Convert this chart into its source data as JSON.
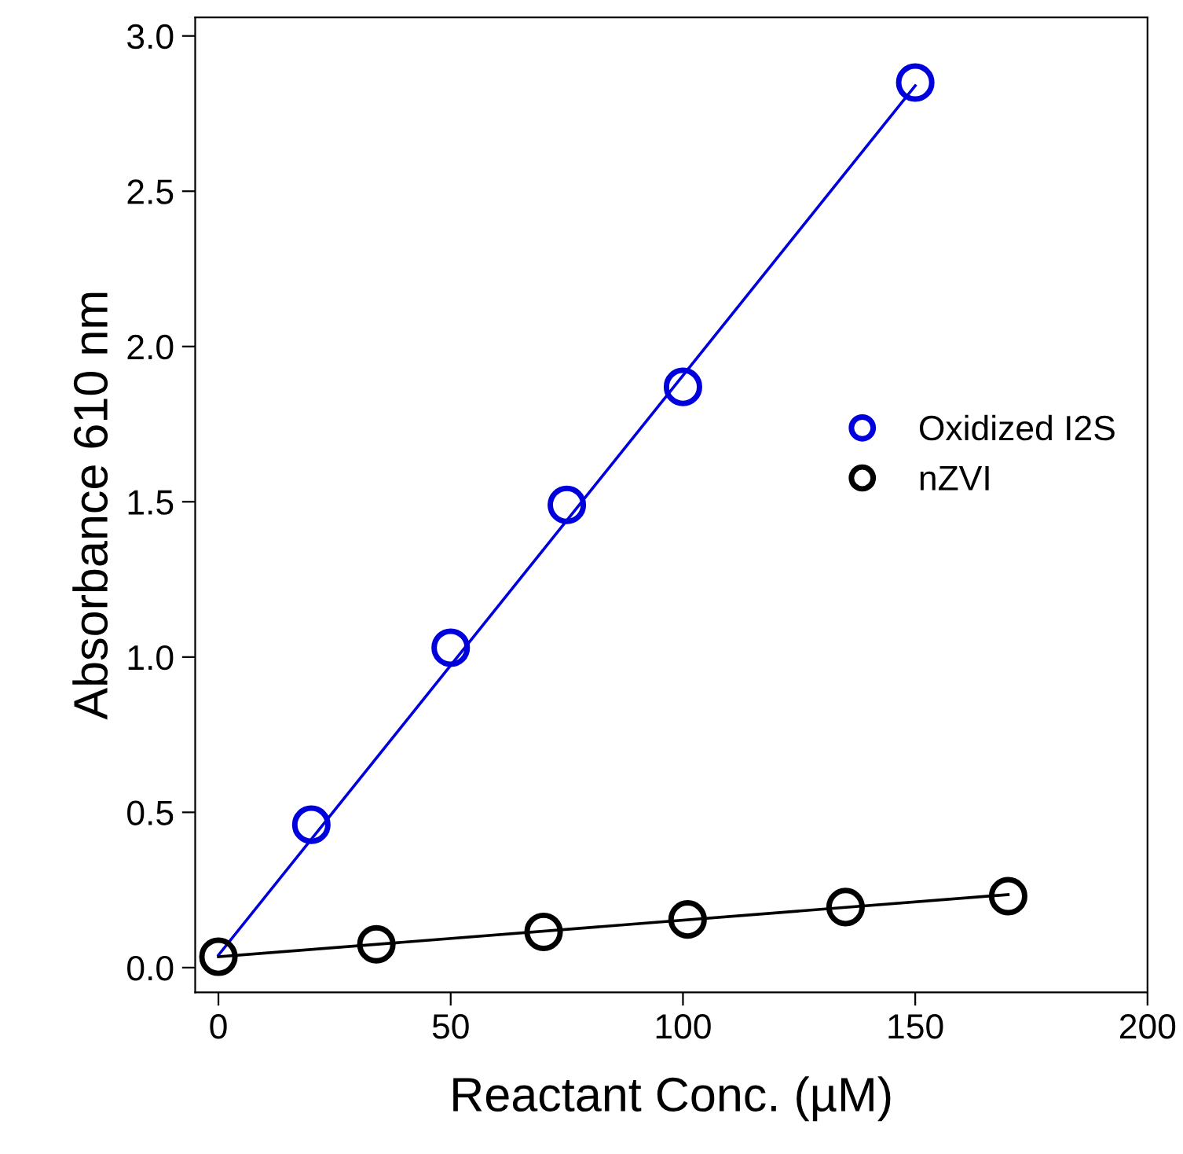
{
  "chart_data": {
    "type": "scatter",
    "xlabel": "Reactant Conc. (µM)",
    "ylabel": "Absorbance 610 nm",
    "xlim": [
      -5,
      200
    ],
    "xticks": [
      0,
      50,
      100,
      150,
      200
    ],
    "ylim": [
      -0.08,
      3.06
    ],
    "yticks": [
      {
        "value": 0,
        "label": "0.0"
      },
      0.5,
      {
        "value": 1,
        "label": "1.0"
      },
      1.5,
      {
        "value": 2,
        "label": "2.0"
      },
      2.5,
      {
        "value": 3,
        "label": "3.0"
      }
    ],
    "grid": false,
    "legend": "right",
    "series": [
      {
        "name": "Oxidized I2S",
        "color": "#0000dd",
        "marker": "circle",
        "x": [
          20,
          50,
          75,
          100,
          150
        ],
        "values": [
          0.46,
          1.03,
          1.49,
          1.87,
          2.85
        ]
      },
      {
        "name": "nZVI",
        "color": "#000000",
        "marker": "circle",
        "x": [
          0,
          34,
          70,
          101,
          135,
          170
        ],
        "values": [
          0.035,
          0.075,
          0.115,
          0.155,
          0.195,
          0.23
        ]
      },
      {
        "type": "line",
        "color": "#0000dd",
        "marker": "none",
        "x": [
          0,
          150
        ],
        "values": [
          0.04,
          2.84
        ]
      },
      {
        "type": "line",
        "color": "#000000",
        "marker": "none",
        "x": [
          0,
          170
        ],
        "values": [
          0.035,
          0.235
        ]
      }
    ]
  }
}
